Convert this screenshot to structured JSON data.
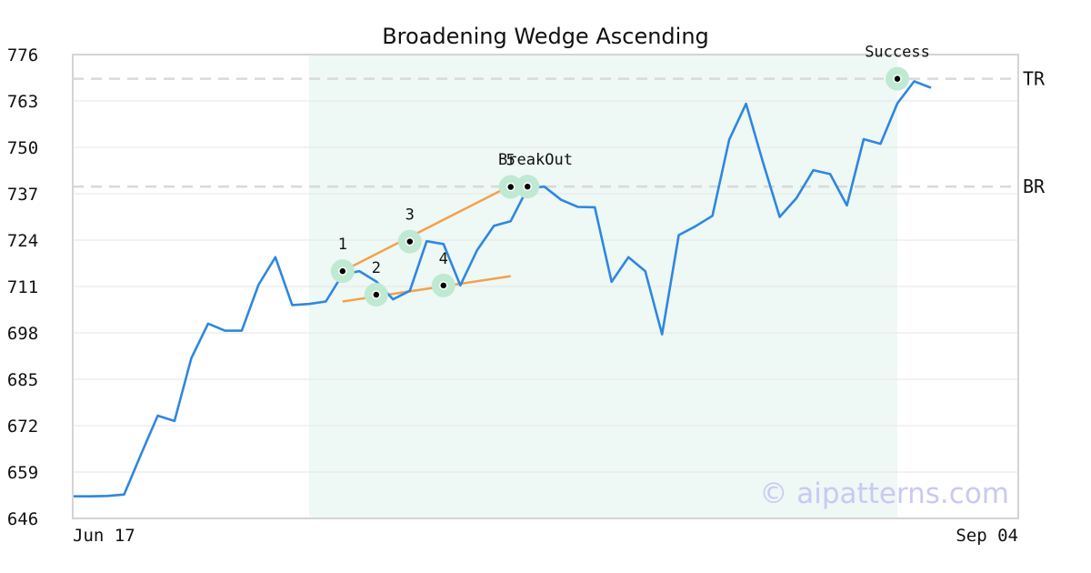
{
  "chart_data": {
    "type": "line",
    "title": "Broadening Wedge Ascending",
    "xlabel": "",
    "ylabel": "",
    "ylim": [
      646,
      776
    ],
    "yticks": [
      646,
      659,
      672,
      685,
      698,
      711,
      724,
      737,
      750,
      763,
      776
    ],
    "xtick_labels": [
      "Jun 17",
      "Sep 04"
    ],
    "grid": true,
    "series": [
      {
        "values": [
          652.2,
          652.2,
          652.3,
          652.7,
          663.9,
          674.8,
          673.3,
          690.9,
          700.6,
          698.6,
          698.6,
          711.5,
          719.2,
          705.8,
          706.1,
          706.8,
          714.4,
          715.3,
          712.4,
          707.4,
          709.8,
          723.7,
          722.9,
          711.3,
          721.2,
          728.0,
          729.3,
          738.5,
          739.0,
          735.3,
          733.3,
          733.2,
          712.3,
          719.2,
          715.3,
          697.6,
          725.4,
          727.9,
          730.8,
          752.2,
          762.2,
          745.9,
          730.5,
          735.8,
          743.6,
          742.5,
          733.7,
          752.3,
          751.0,
          762.3,
          768.5,
          766.7
        ]
      }
    ],
    "shaded_region": {
      "start_index": 14,
      "end_index": 49
    },
    "points": [
      {
        "label": "1",
        "index": 16,
        "value": 715.3
      },
      {
        "label": "2",
        "index": 18,
        "value": 708.7
      },
      {
        "label": "3",
        "index": 20,
        "value": 723.6
      },
      {
        "label": "4",
        "index": 22,
        "value": 711.3
      },
      {
        "label": "5",
        "index": 26,
        "value": 738.9
      }
    ],
    "breakout": {
      "label": "BreakOut",
      "index": 27,
      "value": 739.0
    },
    "success": {
      "label": "Success",
      "index": 49,
      "value": 769.2
    },
    "trendlines": [
      {
        "from": {
          "index": 16,
          "value": 715.3
        },
        "to": {
          "index": 26,
          "value": 739.3
        }
      },
      {
        "from": {
          "index": 16,
          "value": 706.8
        },
        "to": {
          "index": 26,
          "value": 713.9
        }
      }
    ],
    "levels": [
      {
        "label": "TR",
        "value": 769.2
      },
      {
        "label": "BR",
        "value": 739.0
      }
    ],
    "colors": {
      "line": "#2f87e0",
      "shade": "#eef8f4",
      "trend": "#f2a24b",
      "marker_halo": "#bfe9d3",
      "marker": "#000000",
      "grid": "#e6e6e6",
      "level": "#d9d9d9"
    },
    "watermark": "© aipatterns.com"
  }
}
